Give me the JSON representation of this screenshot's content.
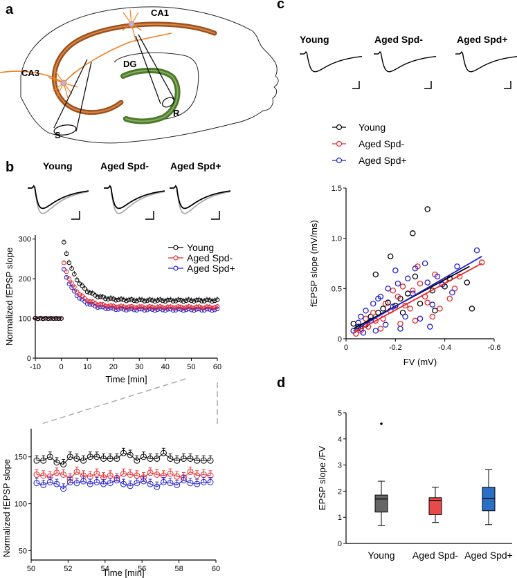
{
  "panels": {
    "a": "a",
    "b": "b",
    "c": "c",
    "d": "d"
  },
  "schematic": {
    "ca1": "CA1",
    "ca3": "CA3",
    "dg": "DG",
    "stim": "S",
    "rec": "R"
  },
  "groups": [
    "Young",
    "Aged Spd-",
    "Aged Spd+"
  ],
  "colors": {
    "young": "#000000",
    "spdm": "#e8262b",
    "spdp": "#1f1fd1",
    "trace_grey": "#aaaaaa",
    "schem_orange": "#f07f1f",
    "schem_brown": "#a0501b",
    "schem_green": "#4c7a2b",
    "box_young": "#666666",
    "box_spdm": "#e84a4a",
    "box_spdp": "#2b6fc4"
  },
  "chart_data": [
    {
      "id": "b_main",
      "type": "line",
      "ylabel": "Normalized fEPSP slope",
      "xlabel": "Time [min]",
      "xlim": [
        -10,
        60
      ],
      "ylim": [
        0,
        310
      ],
      "xticks": [
        "-10",
        "0",
        "10",
        "20",
        "30",
        "40",
        "50",
        "60"
      ],
      "yticks": [
        "0",
        "100",
        "200",
        "300"
      ],
      "legend": [
        "Young",
        "Aged Spd-",
        "Aged Spd+"
      ],
      "legend_position": "top-right",
      "series": [
        {
          "name": "Young",
          "baseline": 100,
          "peak": 290,
          "plateau": 145,
          "error": 10
        },
        {
          "name": "Aged Spd-",
          "baseline": 100,
          "peak": 238,
          "plateau": 128,
          "error": 9
        },
        {
          "name": "Aged Spd+",
          "baseline": 100,
          "peak": 222,
          "plateau": 122,
          "error": 7
        }
      ]
    },
    {
      "id": "b_zoom",
      "type": "line",
      "ylabel": "Normalized fEPSP slope",
      "xlabel": "Time [min]",
      "xlim": [
        50,
        60
      ],
      "ylim": [
        40,
        180
      ],
      "xticks": [
        "50",
        "52",
        "54",
        "56",
        "58",
        "60"
      ],
      "yticks": [
        "50",
        "100",
        "150"
      ],
      "series": [
        {
          "name": "Young",
          "values": [
            146,
            146,
            150,
            144,
            142,
            150,
            148,
            146,
            150,
            150,
            148,
            148,
            148,
            154,
            152,
            146,
            150,
            148,
            148,
            154,
            148,
            146,
            148,
            148,
            146,
            146,
            146
          ]
        },
        {
          "name": "Aged Spd-",
          "values": [
            131,
            130,
            129,
            133,
            131,
            127,
            134,
            130,
            129,
            132,
            128,
            130,
            127,
            132,
            131,
            130,
            128,
            133,
            131,
            130,
            132,
            129,
            128,
            134,
            130,
            131,
            130
          ]
        },
        {
          "name": "Aged Spd+",
          "values": [
            122,
            120,
            123,
            121,
            116,
            123,
            122,
            124,
            121,
            123,
            121,
            122,
            125,
            121,
            119,
            122,
            124,
            121,
            118,
            123,
            122,
            120,
            125,
            122,
            121,
            123,
            123
          ]
        }
      ]
    },
    {
      "id": "c_scatter",
      "type": "scatter",
      "ylabel": "fEPSP slope (mV/ms)",
      "xlabel": "FV  (mV)",
      "xlim": [
        0,
        -0.6
      ],
      "ylim": [
        0,
        1.5
      ],
      "xticks": [
        "0",
        "-0.2",
        "-0.4",
        "-0.6"
      ],
      "yticks": [
        "0",
        "0.5",
        "1.0",
        "1.5"
      ],
      "legend": [
        "Young",
        "Aged Spd-",
        "Aged Spd+"
      ],
      "fits": [
        {
          "name": "Young",
          "x": [
            -0.03,
            -0.5
          ],
          "y": [
            0.1,
            0.72
          ]
        },
        {
          "name": "Aged Spd-",
          "x": [
            -0.03,
            -0.55
          ],
          "y": [
            0.06,
            0.75
          ]
        },
        {
          "name": "Aged Spd+",
          "x": [
            -0.03,
            -0.55
          ],
          "y": [
            0.08,
            0.82
          ]
        }
      ],
      "series": [
        {
          "name": "Young",
          "points": [
            [
              -0.33,
              1.29
            ],
            [
              -0.27,
              1.05
            ],
            [
              -0.18,
              0.82
            ],
            [
              -0.12,
              0.64
            ],
            [
              -0.49,
              0.56
            ],
            [
              -0.51,
              0.3
            ],
            [
              -0.4,
              0.52
            ],
            [
              -0.28,
              0.62
            ],
            [
              -0.22,
              0.4
            ],
            [
              -0.15,
              0.3
            ],
            [
              -0.08,
              0.14
            ],
            [
              -0.05,
              0.12
            ],
            [
              -0.1,
              0.22
            ],
            [
              -0.35,
              0.48
            ],
            [
              -0.3,
              0.35
            ],
            [
              -0.25,
              0.45
            ],
            [
              -0.2,
              0.33
            ],
            [
              -0.42,
              0.6
            ],
            [
              -0.13,
              0.26
            ],
            [
              -0.36,
              0.28
            ],
            [
              -0.03,
              0.15
            ],
            [
              -0.17,
              0.36
            ],
            [
              -0.06,
              0.1
            ],
            [
              -0.23,
              0.26
            ]
          ]
        },
        {
          "name": "Aged Spd-",
          "points": [
            [
              -0.55,
              0.76
            ],
            [
              -0.46,
              0.62
            ],
            [
              -0.42,
              0.4
            ],
            [
              -0.38,
              0.3
            ],
            [
              -0.33,
              0.36
            ],
            [
              -0.3,
              0.55
            ],
            [
              -0.27,
              0.48
            ],
            [
              -0.24,
              0.33
            ],
            [
              -0.21,
              0.42
            ],
            [
              -0.18,
              0.28
            ],
            [
              -0.15,
              0.2
            ],
            [
              -0.12,
              0.18
            ],
            [
              -0.09,
              0.12
            ],
            [
              -0.06,
              0.08
            ],
            [
              -0.04,
              0.05
            ],
            [
              -0.35,
              0.22
            ],
            [
              -0.28,
              0.18
            ],
            [
              -0.22,
              0.15
            ],
            [
              -0.4,
              0.58
            ],
            [
              -0.44,
              0.5
            ],
            [
              -0.32,
              0.42
            ],
            [
              -0.26,
              0.3
            ],
            [
              -0.19,
              0.48
            ],
            [
              -0.16,
              0.35
            ],
            [
              -0.11,
              0.26
            ],
            [
              -0.08,
              0.2
            ],
            [
              -0.29,
              0.72
            ],
            [
              -0.14,
              0.1
            ],
            [
              -0.36,
              0.64
            ],
            [
              -0.23,
              0.52
            ]
          ]
        },
        {
          "name": "Aged Spd+",
          "points": [
            [
              -0.53,
              0.88
            ],
            [
              -0.45,
              0.72
            ],
            [
              -0.37,
              0.62
            ],
            [
              -0.32,
              0.75
            ],
            [
              -0.28,
              0.7
            ],
            [
              -0.25,
              0.6
            ],
            [
              -0.21,
              0.55
            ],
            [
              -0.17,
              0.5
            ],
            [
              -0.14,
              0.42
            ],
            [
              -0.11,
              0.35
            ],
            [
              -0.08,
              0.28
            ],
            [
              -0.05,
              0.16
            ],
            [
              -0.03,
              0.08
            ],
            [
              -0.2,
              0.68
            ],
            [
              -0.24,
              0.22
            ],
            [
              -0.3,
              0.2
            ],
            [
              -0.34,
              0.12
            ],
            [
              -0.16,
              0.14
            ],
            [
              -0.12,
              0.08
            ],
            [
              -0.07,
              0.06
            ],
            [
              -0.27,
              0.45
            ],
            [
              -0.39,
              0.54
            ],
            [
              -0.43,
              0.46
            ],
            [
              -0.19,
              0.32
            ],
            [
              -0.1,
              0.18
            ],
            [
              -0.22,
              0.1
            ],
            [
              -0.33,
              0.56
            ],
            [
              -0.13,
              0.4
            ],
            [
              -0.06,
              0.22
            ],
            [
              -0.35,
              0.34
            ]
          ]
        }
      ]
    },
    {
      "id": "d_box",
      "type": "box",
      "ylabel": "EPSP slope /FV",
      "ylim": [
        0,
        5
      ],
      "yticks": [
        "0",
        "1",
        "2",
        "3",
        "4",
        "5"
      ],
      "categories": [
        "Young",
        "Aged Spd-",
        "Aged Spd+"
      ],
      "boxes": [
        {
          "name": "Young",
          "min": 0.68,
          "q1": 1.2,
          "median": 1.7,
          "q3": 1.85,
          "max": 2.38,
          "outliers": [
            4.58
          ]
        },
        {
          "name": "Aged Spd-",
          "min": 0.8,
          "q1": 1.1,
          "median": 1.65,
          "q3": 1.75,
          "max": 2.15,
          "outliers": []
        },
        {
          "name": "Aged Spd+",
          "min": 0.72,
          "q1": 1.25,
          "median": 1.72,
          "q3": 2.15,
          "max": 2.82,
          "outliers": []
        }
      ]
    }
  ]
}
